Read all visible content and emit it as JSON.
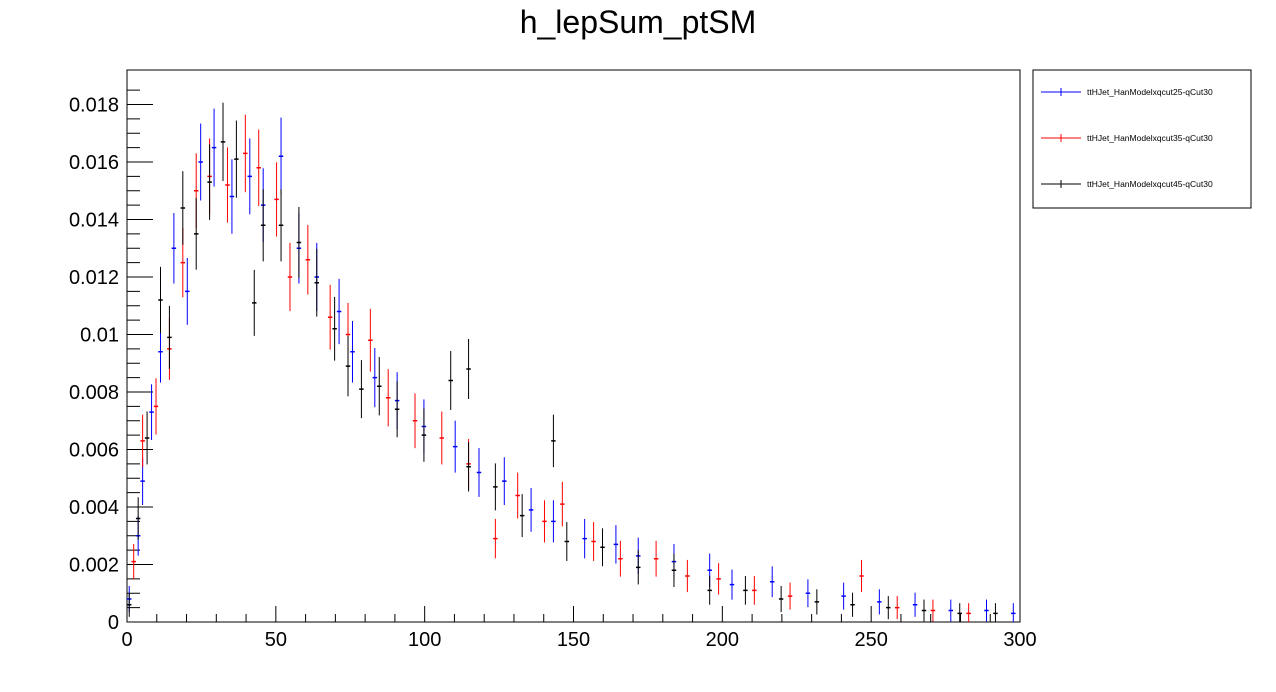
{
  "chart_data": {
    "type": "scatter",
    "title": "h_lepSum_ptSM",
    "xlabel": "",
    "ylabel": "",
    "xlim": [
      0,
      300
    ],
    "ylim": [
      0,
      0.0192
    ],
    "x_ticks": [
      "0",
      "50",
      "100",
      "150",
      "200",
      "250",
      "300"
    ],
    "y_ticks": [
      "0",
      "0.002",
      "0.004",
      "0.006",
      "0.008",
      "0.01",
      "0.012",
      "0.014",
      "0.016",
      "0.018"
    ],
    "legend_position": "top-right outside",
    "bin_width": 1.5,
    "series": [
      {
        "name": "ttHJet_HanModelxqcut25-qCut30",
        "color": "#0000ff",
        "points": [
          [
            0.75,
            0.0008
          ],
          [
            3.75,
            0.003
          ],
          [
            5.25,
            0.0049
          ],
          [
            8.25,
            0.0073
          ],
          [
            11.25,
            0.0094
          ],
          [
            15.75,
            0.013
          ],
          [
            20.25,
            0.0115
          ],
          [
            24.75,
            0.016
          ],
          [
            29.25,
            0.0165
          ],
          [
            35.25,
            0.0148
          ],
          [
            41.25,
            0.0155
          ],
          [
            45.75,
            0.0145
          ],
          [
            51.75,
            0.0162
          ],
          [
            57.75,
            0.013
          ],
          [
            63.75,
            0.012
          ],
          [
            71.25,
            0.0108
          ],
          [
            75.75,
            0.0094
          ],
          [
            83.25,
            0.0085
          ],
          [
            90.75,
            0.0077
          ],
          [
            99.75,
            0.0068
          ],
          [
            110.25,
            0.0061
          ],
          [
            118.25,
            0.0052
          ],
          [
            126.75,
            0.0049
          ],
          [
            135.75,
            0.0039
          ],
          [
            143.25,
            0.0035
          ],
          [
            153.75,
            0.0029
          ],
          [
            164.25,
            0.0027
          ],
          [
            171.75,
            0.0023
          ],
          [
            183.75,
            0.0021
          ],
          [
            195.75,
            0.0018
          ],
          [
            203.25,
            0.0013
          ],
          [
            216.75,
            0.0014
          ],
          [
            228.75,
            0.001
          ],
          [
            240.75,
            0.0009
          ],
          [
            252.75,
            0.0007
          ],
          [
            264.75,
            0.0006
          ],
          [
            276.75,
            0.0004
          ],
          [
            288.75,
            0.0004
          ],
          [
            297.75,
            0.0003
          ]
        ]
      },
      {
        "name": "ttHJet_HanModelxqcut35-qCut30",
        "color": "#ff0000",
        "points": [
          [
            2.25,
            0.0021
          ],
          [
            5.25,
            0.0063
          ],
          [
            9.75,
            0.0075
          ],
          [
            14.25,
            0.0095
          ],
          [
            18.75,
            0.0125
          ],
          [
            23.25,
            0.015
          ],
          [
            27.75,
            0.0155
          ],
          [
            33.75,
            0.0152
          ],
          [
            39.75,
            0.0163
          ],
          [
            44.25,
            0.0158
          ],
          [
            50.25,
            0.0147
          ],
          [
            54.75,
            0.012
          ],
          [
            60.75,
            0.0126
          ],
          [
            68.25,
            0.0106
          ],
          [
            74.25,
            0.01
          ],
          [
            81.75,
            0.0098
          ],
          [
            87.75,
            0.0078
          ],
          [
            96.75,
            0.007
          ],
          [
            105.75,
            0.0064
          ],
          [
            114.75,
            0.0055
          ],
          [
            123.75,
            0.0029
          ],
          [
            131.25,
            0.0044
          ],
          [
            140.25,
            0.0035
          ],
          [
            146.25,
            0.0041
          ],
          [
            156.75,
            0.0028
          ],
          [
            165.75,
            0.0022
          ],
          [
            177.75,
            0.0022
          ],
          [
            188.25,
            0.0016
          ],
          [
            198.75,
            0.0015
          ],
          [
            210.75,
            0.0011
          ],
          [
            222.75,
            0.0009
          ],
          [
            246.75,
            0.0016
          ],
          [
            258.75,
            0.0005
          ],
          [
            270.75,
            0.0004
          ],
          [
            282.75,
            0.0003
          ]
        ]
      },
      {
        "name": "ttHJet_HanModelxqcut45-qCut30",
        "color": "#000000",
        "points": [
          [
            0.75,
            0.0006
          ],
          [
            3.75,
            0.0036
          ],
          [
            6.75,
            0.0064
          ],
          [
            11.25,
            0.0112
          ],
          [
            14.25,
            0.0099
          ],
          [
            18.75,
            0.0144
          ],
          [
            23.25,
            0.0135
          ],
          [
            27.75,
            0.0153
          ],
          [
            32.25,
            0.0167
          ],
          [
            36.75,
            0.0161
          ],
          [
            42.75,
            0.0111
          ],
          [
            45.75,
            0.0138
          ],
          [
            51.75,
            0.0138
          ],
          [
            57.75,
            0.0132
          ],
          [
            63.75,
            0.0118
          ],
          [
            69.75,
            0.0102
          ],
          [
            74.25,
            0.0089
          ],
          [
            78.75,
            0.0081
          ],
          [
            84.75,
            0.0082
          ],
          [
            90.75,
            0.0074
          ],
          [
            99.75,
            0.0065
          ],
          [
            108.75,
            0.0084
          ],
          [
            114.75,
            0.0088
          ],
          [
            114.75,
            0.0054
          ],
          [
            123.75,
            0.0047
          ],
          [
            132.75,
            0.0037
          ],
          [
            143.25,
            0.0063
          ],
          [
            147.75,
            0.0028
          ],
          [
            159.75,
            0.0026
          ],
          [
            171.75,
            0.0019
          ],
          [
            183.75,
            0.0018
          ],
          [
            195.75,
            0.0011
          ],
          [
            207.75,
            0.0011
          ],
          [
            219.75,
            0.0008
          ],
          [
            231.75,
            0.0007
          ],
          [
            243.75,
            0.0006
          ],
          [
            255.75,
            0.0005
          ],
          [
            267.75,
            0.0004
          ],
          [
            279.75,
            0.0003
          ],
          [
            291.75,
            0.0003
          ]
        ]
      }
    ]
  }
}
